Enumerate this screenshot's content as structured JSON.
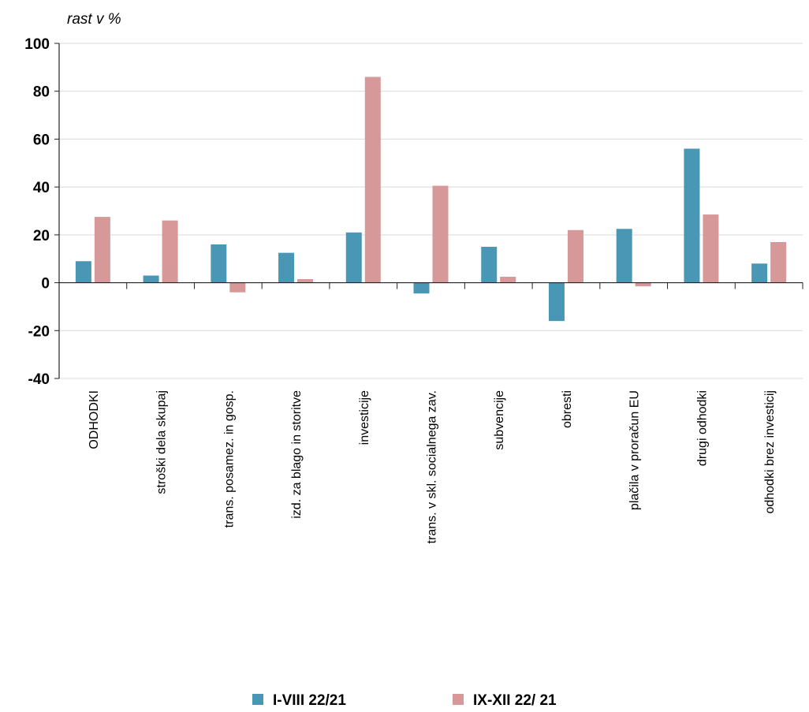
{
  "chart_data": {
    "type": "bar",
    "ylabel": "rast v %",
    "ylim": [
      -40,
      100
    ],
    "yticks": [
      "100",
      "80",
      "60",
      "40",
      "20",
      "0",
      "-20",
      "-40"
    ],
    "ytick_values": [
      100,
      80,
      60,
      40,
      20,
      0,
      -20,
      -40
    ],
    "grid": true,
    "legend_position": "bottom",
    "categories": [
      "ODHODKI",
      "stroški dela skupaj",
      "trans. posamez. in gosp.",
      "izd. za blago in storitve",
      "investicije",
      "trans. v skl. socialnega zav.",
      "subvencije",
      "obresti",
      "plačila v proračun EU",
      "drugi odhodki",
      "odhodki brez investicij"
    ],
    "series": [
      {
        "name": "I-VIII 22/21",
        "color": "#4a97b5",
        "values": [
          9,
          3,
          16,
          12.5,
          21,
          -4.5,
          15,
          -16,
          22.5,
          56,
          8
        ]
      },
      {
        "name": "IX-XII 22/ 21",
        "color": "#d69898",
        "values": [
          27.5,
          26,
          -4,
          1.5,
          86,
          40.5,
          2.5,
          22,
          -1.5,
          28.5,
          17
        ]
      }
    ]
  }
}
